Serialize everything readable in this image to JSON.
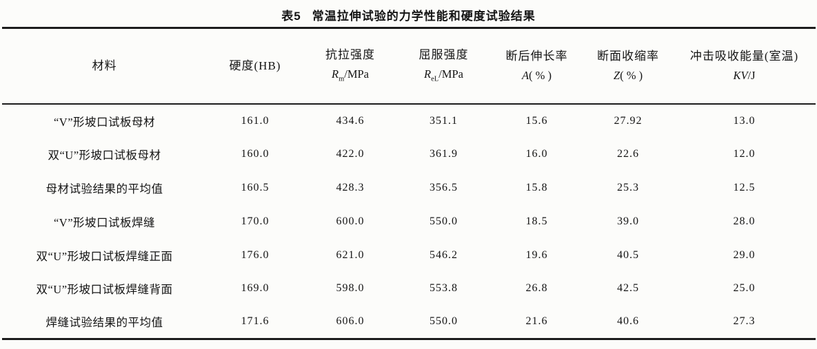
{
  "page": {
    "label": "表5",
    "title": "常温拉伸试验的力学性能和硬度试验结果"
  },
  "table": {
    "columns": {
      "material": {
        "zh": "材料"
      },
      "hardness": {
        "zh": "硬度(HB)"
      },
      "tensile": {
        "zh": "抗拉强度",
        "sym": "R",
        "sub": "m",
        "rest": "/MPa"
      },
      "yield": {
        "zh": "屈服强度",
        "sym": "R",
        "sub": "eL",
        "rest": "/MPa"
      },
      "elongation": {
        "zh": "断后伸长率",
        "sym": "A",
        "sub": "",
        "rest": "( % )"
      },
      "reduction": {
        "zh": "断面收缩率",
        "sym": "Z",
        "sub": "",
        "rest": "( % )"
      },
      "impact": {
        "zh": "冲击吸收能量(室温)",
        "sym": "KV",
        "sub": "",
        "rest": "/J"
      }
    },
    "rows": [
      {
        "material": "“V”形坡口试板母材",
        "hardness": "161.0",
        "tensile": "434.6",
        "yield": "351.1",
        "elongation": "15.6",
        "reduction": "27.92",
        "impact": "13.0"
      },
      {
        "material": "双“U”形坡口试板母材",
        "hardness": "160.0",
        "tensile": "422.0",
        "yield": "361.9",
        "elongation": "16.0",
        "reduction": "22.6",
        "impact": "12.0"
      },
      {
        "material": "母材试验结果的平均值",
        "hardness": "160.5",
        "tensile": "428.3",
        "yield": "356.5",
        "elongation": "15.8",
        "reduction": "25.3",
        "impact": "12.5"
      },
      {
        "material": "“V”形坡口试板焊缝",
        "hardness": "170.0",
        "tensile": "600.0",
        "yield": "550.0",
        "elongation": "18.5",
        "reduction": "39.0",
        "impact": "28.0"
      },
      {
        "material": "双“U”形坡口试板焊缝正面",
        "hardness": "176.0",
        "tensile": "621.0",
        "yield": "546.2",
        "elongation": "19.6",
        "reduction": "40.5",
        "impact": "29.0"
      },
      {
        "material": "双“U”形坡口试板焊缝背面",
        "hardness": "169.0",
        "tensile": "598.0",
        "yield": "553.8",
        "elongation": "26.8",
        "reduction": "42.5",
        "impact": "25.0"
      },
      {
        "material": "焊缝试验结果的平均值",
        "hardness": "171.6",
        "tensile": "606.0",
        "yield": "550.0",
        "elongation": "21.6",
        "reduction": "40.6",
        "impact": "27.3"
      }
    ]
  }
}
